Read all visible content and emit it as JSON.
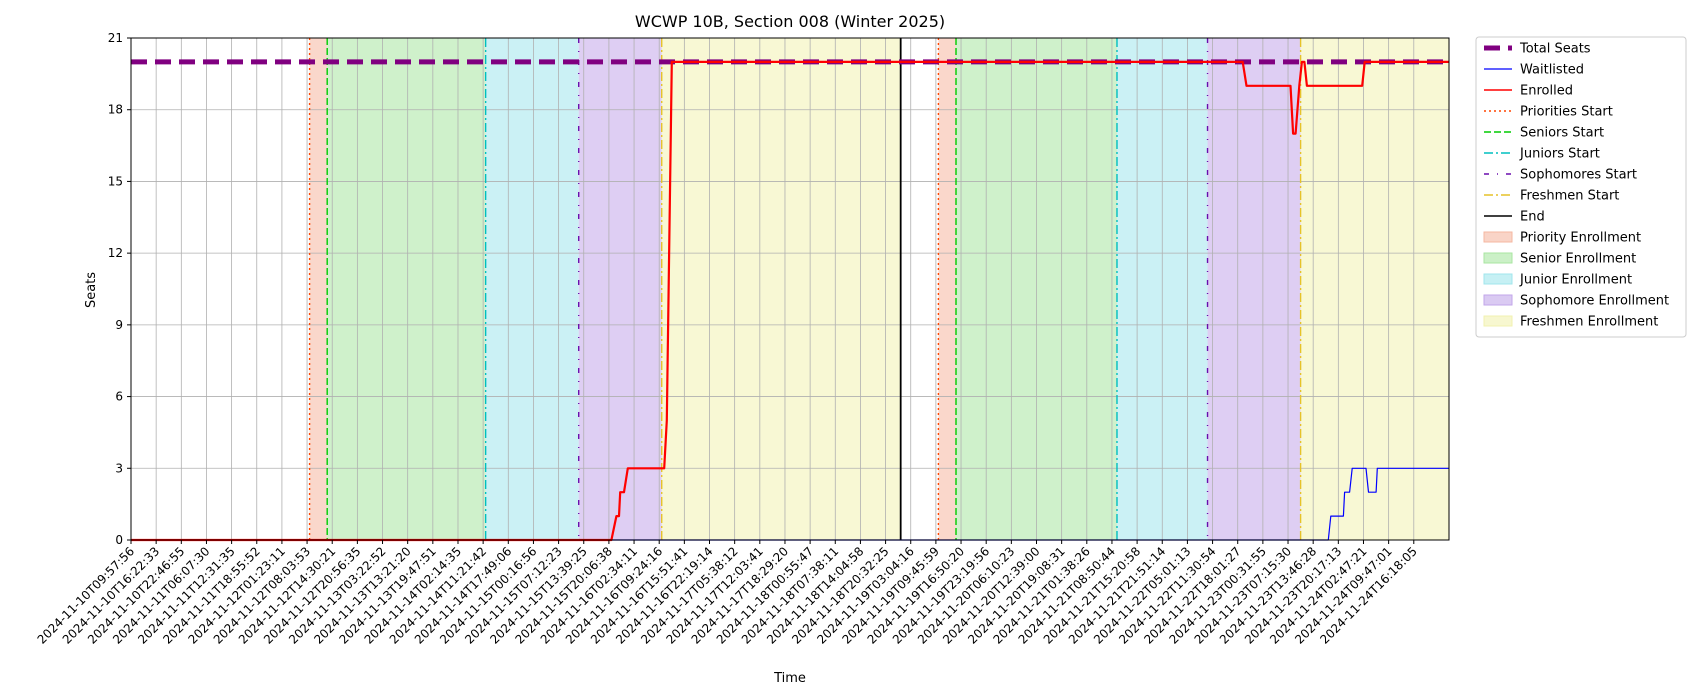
{
  "chart_data": {
    "type": "line",
    "title": "WCWP 10B, Section 008 (Winter 2025)",
    "xlabel": "Time",
    "ylabel": "Seats",
    "ylim": [
      0,
      21
    ],
    "yticks": [
      0,
      3,
      6,
      9,
      12,
      15,
      18,
      21
    ],
    "xlim": [
      "2024-11-10T09:57:56",
      "2024-11-24T18:00:00"
    ],
    "grid": true,
    "legend_position": "outside-right",
    "x_tick_labels": [
      "2024-11-10T09:57:56",
      "2024-11-10T16:22:33",
      "2024-11-10T22:46:55",
      "2024-11-11T06:07:30",
      "2024-11-11T12:31:35",
      "2024-11-11T18:55:52",
      "2024-11-12T01:23:11",
      "2024-11-12T08:03:53",
      "2024-11-12T14:30:21",
      "2024-11-12T20:56:35",
      "2024-11-13T03:22:52",
      "2024-11-13T13:21:20",
      "2024-11-13T19:47:51",
      "2024-11-14T02:14:35",
      "2024-11-14T11:21:42",
      "2024-11-14T17:49:06",
      "2024-11-15T00:16:56",
      "2024-11-15T07:12:23",
      "2024-11-15T13:39:25",
      "2024-11-15T20:06:38",
      "2024-11-16T02:34:11",
      "2024-11-16T09:24:16",
      "2024-11-16T15:51:41",
      "2024-11-16T22:19:14",
      "2024-11-17T05:38:12",
      "2024-11-17T12:03:41",
      "2024-11-17T18:29:20",
      "2024-11-18T00:55:47",
      "2024-11-18T07:38:11",
      "2024-11-18T14:04:58",
      "2024-11-18T20:32:25",
      "2024-11-19T03:04:16",
      "2024-11-19T09:45:59",
      "2024-11-19T16:50:20",
      "2024-11-19T23:19:56",
      "2024-11-20T06:10:23",
      "2024-11-20T12:39:00",
      "2024-11-20T19:08:31",
      "2024-11-21T01:38:26",
      "2024-11-21T08:50:44",
      "2024-11-21T15:20:58",
      "2024-11-21T21:51:14",
      "2024-11-22T05:01:13",
      "2024-11-22T11:30:54",
      "2024-11-22T18:01:27",
      "2024-11-23T00:31:55",
      "2024-11-23T07:15:30",
      "2024-11-23T13:46:28",
      "2024-11-23T20:17:13",
      "2024-11-24T02:47:21",
      "2024-11-24T09:47:01",
      "2024-11-24T16:18:05"
    ],
    "series": [
      {
        "name": "Total Seats",
        "style": "dashed-thick",
        "color": "#800080",
        "points": [
          [
            0,
            20
          ],
          [
            52.4,
            20
          ]
        ]
      },
      {
        "name": "Waitlisted",
        "style": "solid-thin",
        "color": "#0000ff",
        "points": [
          [
            0,
            0
          ],
          [
            47.6,
            0
          ],
          [
            47.7,
            1
          ],
          [
            48.2,
            1
          ],
          [
            48.25,
            2
          ],
          [
            48.45,
            2
          ],
          [
            48.55,
            3
          ],
          [
            49.1,
            3
          ],
          [
            49.2,
            2
          ],
          [
            49.5,
            2
          ],
          [
            49.55,
            3
          ],
          [
            52.4,
            3
          ]
        ]
      },
      {
        "name": "Enrolled",
        "style": "solid",
        "color": "#ff0000",
        "points": [
          [
            0,
            0
          ],
          [
            19.1,
            0
          ],
          [
            19.3,
            1
          ],
          [
            19.4,
            1
          ],
          [
            19.45,
            2
          ],
          [
            19.6,
            2
          ],
          [
            19.75,
            3
          ],
          [
            21.2,
            3
          ],
          [
            21.3,
            5
          ],
          [
            21.5,
            20
          ],
          [
            44.2,
            20
          ],
          [
            44.35,
            19
          ],
          [
            46.1,
            19
          ],
          [
            46.2,
            17
          ],
          [
            46.3,
            17
          ],
          [
            46.45,
            19
          ],
          [
            46.55,
            20
          ],
          [
            46.65,
            20
          ],
          [
            46.75,
            19
          ],
          [
            48.95,
            19
          ],
          [
            49.05,
            20
          ],
          [
            52.4,
            20
          ]
        ]
      }
    ],
    "start_markers": [
      {
        "name": "Priorities Start",
        "style": "dotted",
        "color": "#ff4500",
        "x": [
          7.1,
          32.1
        ]
      },
      {
        "name": "Seniors Start",
        "style": "dashed",
        "color": "#00cc00",
        "x": [
          7.8,
          32.8
        ]
      },
      {
        "name": "Juniors Start",
        "style": "dashdot",
        "color": "#00bfbf",
        "x": [
          14.1,
          39.2
        ]
      },
      {
        "name": "Sophomores Start",
        "style": "loosely-dashdot",
        "color": "#6a0dad",
        "x": [
          17.8,
          42.8
        ]
      },
      {
        "name": "Freshmen Start",
        "style": "dashdot",
        "color": "#e6c229",
        "x": [
          21.1,
          46.5
        ]
      },
      {
        "name": "End",
        "style": "solid",
        "color": "#000000",
        "x": [
          30.6
        ]
      }
    ],
    "enrollment_periods": [
      {
        "name": "Priority Enrollment",
        "color": "#f5b7a1",
        "ranges": [
          [
            7.1,
            7.8
          ],
          [
            32.1,
            32.8
          ]
        ]
      },
      {
        "name": "Senior Enrollment",
        "color": "#a8e6a1",
        "ranges": [
          [
            7.8,
            14.1
          ],
          [
            32.8,
            39.2
          ]
        ]
      },
      {
        "name": "Junior Enrollment",
        "color": "#a0e6ec",
        "ranges": [
          [
            14.1,
            17.8
          ],
          [
            39.2,
            42.8
          ]
        ]
      },
      {
        "name": "Sophomore Enrollment",
        "color": "#c2a6ea",
        "ranges": [
          [
            17.8,
            21.1
          ],
          [
            42.8,
            46.5
          ]
        ]
      },
      {
        "name": "Freshmen Enrollment",
        "color": "#f2f2b0",
        "ranges": [
          [
            21.1,
            30.6
          ],
          [
            46.5,
            52.4
          ]
        ]
      }
    ],
    "legend": [
      {
        "label": "Total Seats",
        "kind": "line",
        "color": "#800080",
        "style": "dashed-thick"
      },
      {
        "label": "Waitlisted",
        "kind": "line",
        "color": "#0000ff",
        "style": "solid-thin"
      },
      {
        "label": "Enrolled",
        "kind": "line",
        "color": "#ff0000",
        "style": "solid"
      },
      {
        "label": "Priorities Start",
        "kind": "line",
        "color": "#ff4500",
        "style": "dotted"
      },
      {
        "label": "Seniors Start",
        "kind": "line",
        "color": "#00cc00",
        "style": "dashed"
      },
      {
        "label": "Juniors Start",
        "kind": "line",
        "color": "#00bfbf",
        "style": "dashdot"
      },
      {
        "label": "Sophomores Start",
        "kind": "line",
        "color": "#6a0dad",
        "style": "loosely-dashdot"
      },
      {
        "label": "Freshmen Start",
        "kind": "line",
        "color": "#e6c229",
        "style": "dashdot"
      },
      {
        "label": "End",
        "kind": "line",
        "color": "#000000",
        "style": "solid"
      },
      {
        "label": "Priority Enrollment",
        "kind": "patch",
        "color": "#f5b7a1"
      },
      {
        "label": "Senior Enrollment",
        "kind": "patch",
        "color": "#a8e6a1"
      },
      {
        "label": "Junior Enrollment",
        "kind": "patch",
        "color": "#a0e6ec"
      },
      {
        "label": "Sophomore Enrollment",
        "kind": "patch",
        "color": "#c2a6ea"
      },
      {
        "label": "Freshmen Enrollment",
        "kind": "patch",
        "color": "#f2f2b0"
      }
    ]
  }
}
